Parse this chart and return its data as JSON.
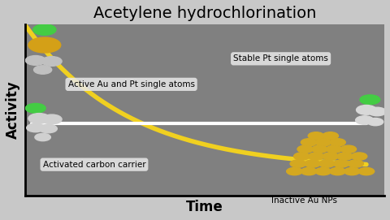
{
  "title": "Acetylene hydrochlorination",
  "xlabel": "Time",
  "ylabel": "Activity",
  "bg_color": "#808080",
  "outer_bg": "#c8c8c8",
  "yellow_line_color": "#f0d020",
  "white_line_color": "#ffffff",
  "label_au_pt": "Active Au and Pt single atoms",
  "label_stable": "Stable Pt single atoms",
  "label_carbon": "Activated carbon carrier",
  "label_inactive": "Inactive Au NPs",
  "title_fontsize": 14,
  "label_fontsize": 8,
  "axis_label_fontsize": 12
}
